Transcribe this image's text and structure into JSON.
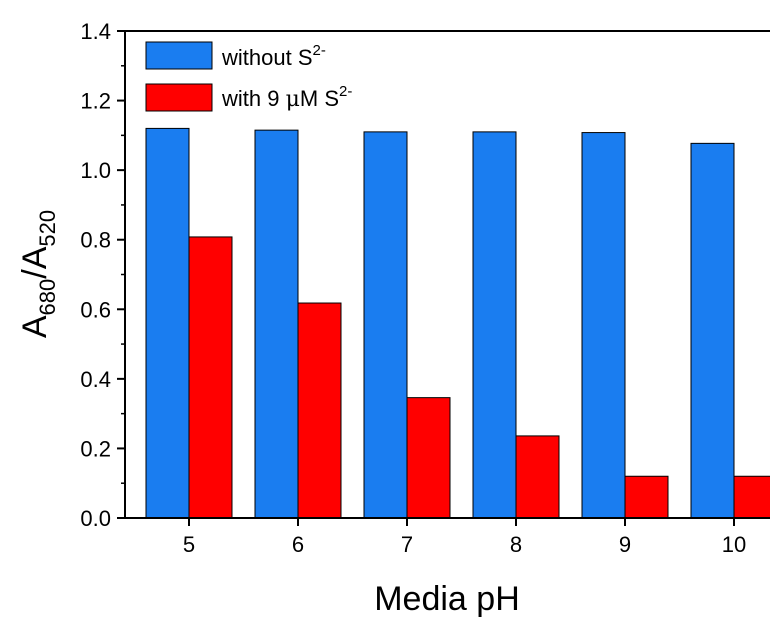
{
  "chart_data": {
    "type": "bar",
    "categories": [
      "5",
      "6",
      "7",
      "8",
      "9",
      "10"
    ],
    "series": [
      {
        "name": "without S2-",
        "color": "#1a7df0",
        "values": [
          1.12,
          1.115,
          1.11,
          1.11,
          1.108,
          1.077
        ]
      },
      {
        "name": "with 9 uM S2-",
        "color": "#ff0000",
        "values": [
          0.808,
          0.618,
          0.346,
          0.236,
          0.12,
          0.12
        ]
      }
    ],
    "title": "",
    "xlabel": "Media pH",
    "ylabel": "A680/A520",
    "ylim": [
      0,
      1.4
    ],
    "yticks": [
      "0.0",
      "0.2",
      "0.4",
      "0.6",
      "0.8",
      "1.0",
      "1.2",
      "1.4"
    ],
    "grid": false,
    "legend_position": "top-left"
  },
  "legend": {
    "s1_main": "without S",
    "s1_sup": "2-",
    "s2_main": "with 9 ",
    "s2_mu": "μ",
    "s2_rest": "M S",
    "s2_sup": "2-"
  },
  "axes": {
    "x_title": "Media pH",
    "y_main": "A",
    "y_sub1": "680",
    "y_slash": "/A",
    "y_sub2": "520"
  }
}
